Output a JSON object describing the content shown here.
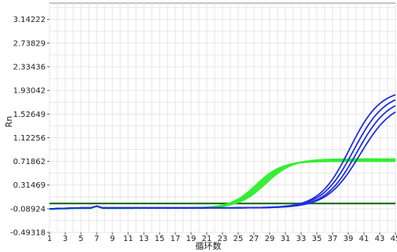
{
  "chart_data": {
    "type": "line",
    "xlabel": "循环数",
    "ylabel": "Rn",
    "xlim": [
      1,
      45
    ],
    "ylim": [
      -0.49318,
      3.42
    ],
    "x_ticks": [
      1,
      3,
      5,
      7,
      9,
      11,
      13,
      15,
      17,
      19,
      21,
      23,
      25,
      27,
      29,
      31,
      33,
      35,
      37,
      39,
      41,
      43,
      45
    ],
    "y_ticks": [
      "-0.49318",
      "-0.08924",
      "0.31469",
      "0.71862",
      "1.12256",
      "1.52649",
      "1.93042",
      "2.33436",
      "2.73829",
      "3.14222"
    ],
    "grid": true,
    "threshold": {
      "value": 0.0,
      "color": "#1a6b1a"
    },
    "colors": {
      "blue": "#1f2fe0",
      "green": "#33ee33"
    },
    "series": [
      {
        "color": "#33ee33",
        "baseline": -0.08,
        "plateau": 0.72,
        "midpoint": 27.3,
        "slope": 0.62
      },
      {
        "color": "#33ee33",
        "baseline": -0.08,
        "plateau": 0.73,
        "midpoint": 27.6,
        "slope": 0.62
      },
      {
        "color": "#33ee33",
        "baseline": -0.08,
        "plateau": 0.74,
        "midpoint": 27.9,
        "slope": 0.6
      },
      {
        "color": "#33ee33",
        "baseline": -0.08,
        "plateau": 0.75,
        "midpoint": 28.2,
        "slope": 0.6
      },
      {
        "color": "#33ee33",
        "baseline": -0.08,
        "plateau": 0.76,
        "midpoint": 28.5,
        "slope": 0.58
      },
      {
        "color": "#1f2fe0",
        "baseline": -0.075,
        "plateau": 1.95,
        "midpoint": 39.2,
        "slope": 0.52
      },
      {
        "color": "#1f2fe0",
        "baseline": -0.075,
        "plateau": 1.9,
        "midpoint": 39.7,
        "slope": 0.5
      },
      {
        "color": "#1f2fe0",
        "baseline": -0.075,
        "plateau": 1.82,
        "midpoint": 40.1,
        "slope": 0.5
      },
      {
        "color": "#1f2fe0",
        "baseline": -0.075,
        "plateau": 1.75,
        "midpoint": 40.5,
        "slope": 0.48
      }
    ]
  }
}
